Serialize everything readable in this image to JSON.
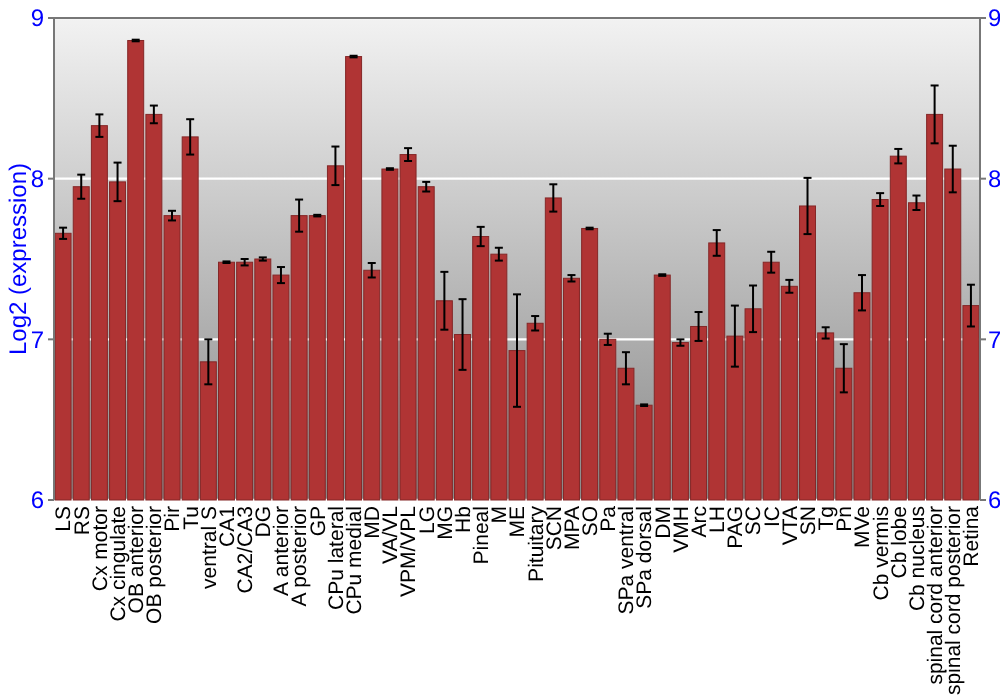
{
  "chart_data": {
    "type": "bar",
    "ylabel": "Log2 (expression)",
    "categories": [
      "LS",
      "RS",
      "Cx motor",
      "Cx cingulate",
      "OB anterior",
      "OB posterior",
      "Pir",
      "Tu",
      "ventral S",
      "CA1",
      "CA2/CA3",
      "DG",
      "A anterior",
      "A posterior",
      "GP",
      "CPu lateral",
      "CPu medial",
      "MD",
      "VA/VL",
      "VPM/VPL",
      "LG",
      "MG",
      "Hb",
      "Pineal",
      "M",
      "ME",
      "Pituitary",
      "SCN",
      "MPA",
      "SO",
      "Pa",
      "SPa ventral",
      "SPa dorsal",
      "DM",
      "VMH",
      "Arc",
      "LH",
      "PAG",
      "SC",
      "IC",
      "VTA",
      "SN",
      "Tg",
      "Pn",
      "MVe",
      "Cb vermis",
      "Cb lobe",
      "Cb nucleus",
      "spinal cord anterior",
      "spinal cord posterior",
      "Retina"
    ],
    "series": [
      {
        "color": "#b03434",
        "values": [
          7.66,
          7.95,
          8.33,
          7.98,
          8.86,
          8.4,
          7.77,
          8.26,
          6.86,
          7.48,
          7.48,
          7.5,
          7.4,
          7.77,
          7.77,
          8.08,
          8.76,
          7.43,
          8.06,
          8.15,
          7.95,
          7.24,
          7.03,
          7.64,
          7.53,
          6.93,
          7.1,
          7.88,
          7.38,
          7.69,
          7.0,
          6.82,
          6.59,
          7.4,
          6.98,
          7.08,
          7.6,
          7.02,
          7.19,
          7.48,
          7.33,
          7.83,
          7.04,
          6.82,
          7.29,
          7.87,
          8.14,
          7.85,
          8.4,
          8.06,
          7.21
        ],
        "errors": [
          0.035,
          0.075,
          0.07,
          0.12,
          0.005,
          0.055,
          0.03,
          0.11,
          0.14,
          0.005,
          0.02,
          0.01,
          0.05,
          0.1,
          0.005,
          0.12,
          0.005,
          0.045,
          0.005,
          0.04,
          0.03,
          0.18,
          0.22,
          0.06,
          0.04,
          0.35,
          0.045,
          0.085,
          0.02,
          0.005,
          0.035,
          0.1,
          0.005,
          0.005,
          0.02,
          0.09,
          0.08,
          0.19,
          0.145,
          0.065,
          0.04,
          0.175,
          0.035,
          0.15,
          0.11,
          0.04,
          0.045,
          0.045,
          0.18,
          0.145,
          0.13
        ]
      }
    ],
    "ylim": [
      6,
      9
    ],
    "yticks": [
      6,
      7,
      8,
      9
    ],
    "y2lim": [
      6,
      9
    ],
    "y2ticks": [
      6,
      7,
      8,
      9
    ],
    "grid": "y"
  }
}
